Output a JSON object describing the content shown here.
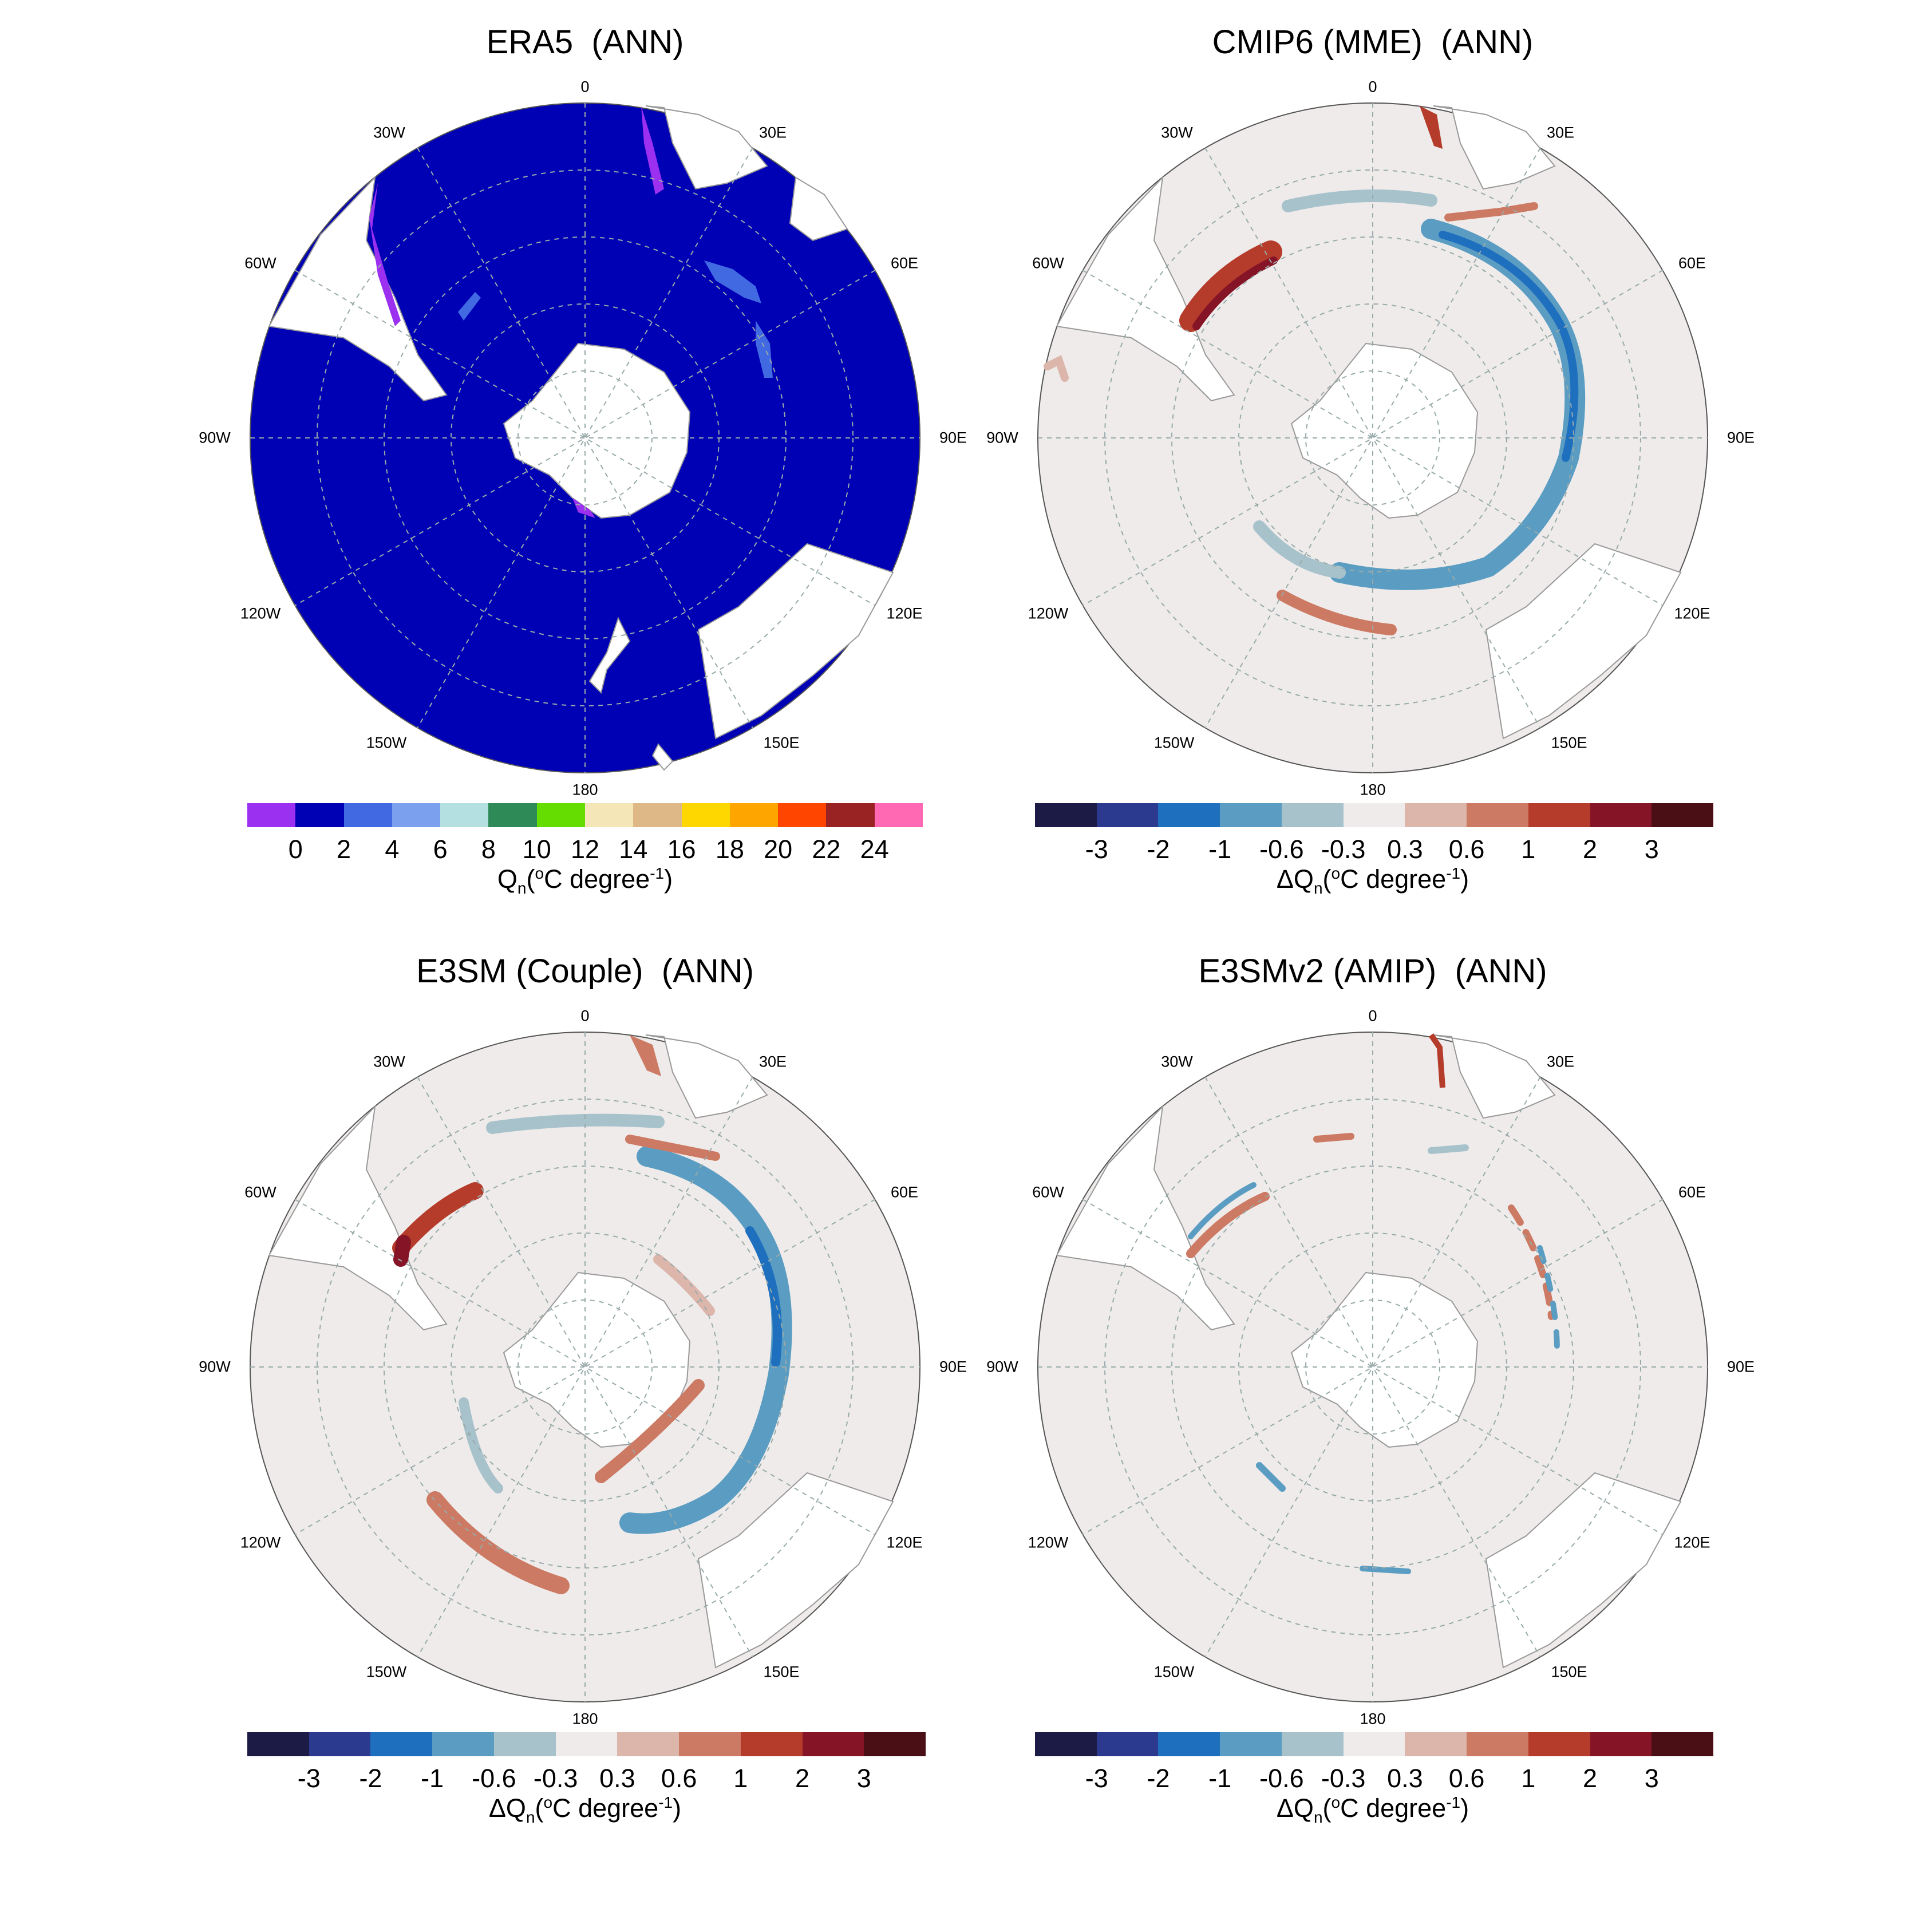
{
  "panels": [
    {
      "title": "ERA5  (ANN)",
      "lon_labels": [
        "0",
        "30E",
        "60E",
        "90E",
        "120E",
        "150E",
        "180",
        "150W",
        "120W",
        "90W",
        "60W",
        "30W"
      ],
      "colorbar": {
        "colors": [
          "#9B30F0",
          "#0000B4",
          "#4169E1",
          "#7BA0EE",
          "#B4E0E2",
          "#2E8B57",
          "#66DD00",
          "#F5E6B8",
          "#DEB887",
          "#FFD700",
          "#FFA500",
          "#FF4500",
          "#992222",
          "#FF69B4"
        ],
        "ticks": [
          "0",
          "2",
          "4",
          "6",
          "8",
          "10",
          "12",
          "14",
          "16",
          "18",
          "20",
          "22",
          "24"
        ],
        "label_main": "Q",
        "label_sub": "n",
        "label_rest": "(",
        "label_deg": "o",
        "label_unit": "C degree",
        "label_sup": "-1",
        "label_end": ")"
      }
    },
    {
      "title": "CMIP6 (MME)  (ANN)",
      "lon_labels": [
        "0",
        "30E",
        "60E",
        "90E",
        "120E",
        "150E",
        "180",
        "150W",
        "120W",
        "90W",
        "60W",
        "30W"
      ],
      "colorbar": {
        "colors": [
          "#1B1B46",
          "#2B3A8F",
          "#1F6FBF",
          "#5B9DC2",
          "#A8C2CC",
          "#EEEBEA",
          "#DDB6AB",
          "#CC7A63",
          "#B53B2A",
          "#851427",
          "#4A0E15"
        ],
        "ticks": [
          "-3",
          "-2",
          "-1",
          "-0.6",
          "-0.3",
          "0.3",
          "0.6",
          "1",
          "2",
          "3"
        ],
        "label_main": "ΔQ",
        "label_sub": "n",
        "label_rest": "(",
        "label_deg": "o",
        "label_unit": "C degree",
        "label_sup": "-1",
        "label_end": ")"
      }
    },
    {
      "title": "E3SM (Couple)  (ANN)",
      "lon_labels": [
        "0",
        "30E",
        "60E",
        "90E",
        "120E",
        "150E",
        "180",
        "150W",
        "120W",
        "90W",
        "60W",
        "30W"
      ],
      "colorbar": {
        "colors": [
          "#1B1B46",
          "#2B3A8F",
          "#1F6FBF",
          "#5B9DC2",
          "#A8C2CC",
          "#EEEBEA",
          "#DDB6AB",
          "#CC7A63",
          "#B53B2A",
          "#851427",
          "#4A0E15"
        ],
        "ticks": [
          "-3",
          "-2",
          "-1",
          "-0.6",
          "-0.3",
          "0.3",
          "0.6",
          "1",
          "2",
          "3"
        ],
        "label_main": "ΔQ",
        "label_sub": "n",
        "label_rest": "(",
        "label_deg": "o",
        "label_unit": "C degree",
        "label_sup": "-1",
        "label_end": ")"
      }
    },
    {
      "title": "E3SMv2 (AMIP)  (ANN)",
      "lon_labels": [
        "0",
        "30E",
        "60E",
        "90E",
        "120E",
        "150E",
        "180",
        "150W",
        "120W",
        "90W",
        "60W",
        "30W"
      ],
      "colorbar": {
        "colors": [
          "#1B1B46",
          "#2B3A8F",
          "#1F6FBF",
          "#5B9DC2",
          "#A8C2CC",
          "#EEEBEA",
          "#DDB6AB",
          "#CC7A63",
          "#B53B2A",
          "#851427",
          "#4A0E15"
        ],
        "ticks": [
          "-3",
          "-2",
          "-1",
          "-0.6",
          "-0.3",
          "0.3",
          "0.6",
          "1",
          "2",
          "3"
        ],
        "label_main": "ΔQ",
        "label_sub": "n",
        "label_rest": "(",
        "label_deg": "o",
        "label_unit": "C degree",
        "label_sup": "-1",
        "label_end": ")"
      }
    }
  ]
}
